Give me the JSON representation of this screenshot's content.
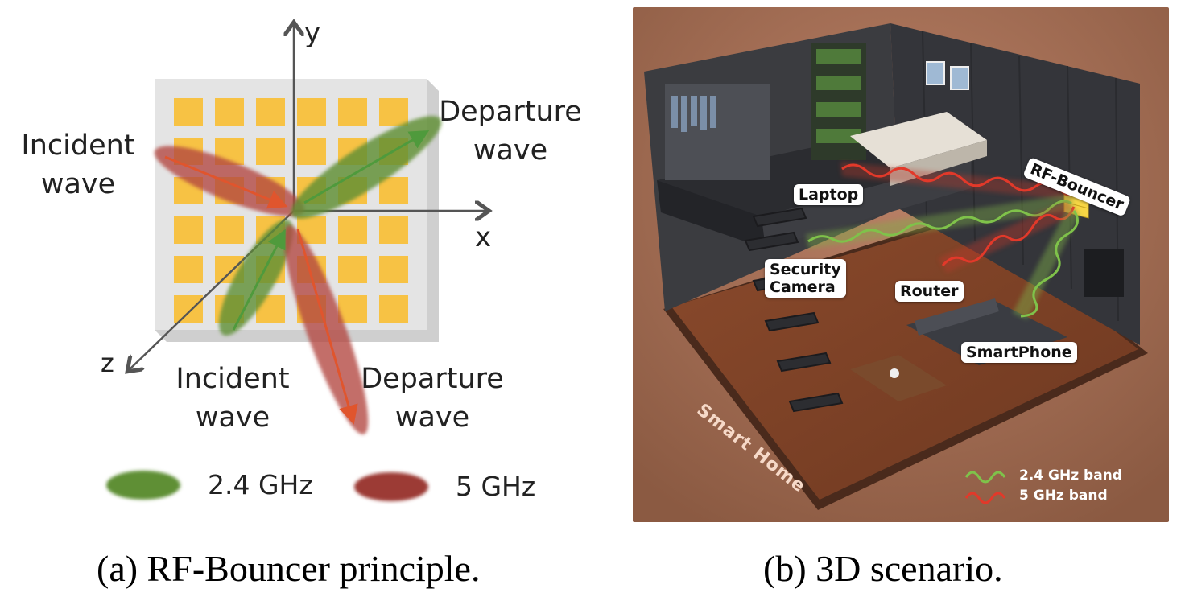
{
  "panel_a": {
    "axis_x": "x",
    "axis_y": "y",
    "axis_z": "z",
    "incident_top": [
      "Incident",
      "wave"
    ],
    "departure_top": [
      "Departure",
      "wave"
    ],
    "incident_bottom": [
      "Incident",
      "wave"
    ],
    "departure_bottom": [
      "Departure",
      "wave"
    ],
    "legend": [
      {
        "label": "2.4 GHz",
        "color": "#5f8f35"
      },
      {
        "label": "5 GHz",
        "color": "#9c3a36"
      }
    ],
    "caption": "(a)  RF-Bouncer principle."
  },
  "panel_b": {
    "labels": {
      "rf_bouncer": "RF-Bouncer",
      "laptop": "Laptop",
      "security_camera": [
        "Security",
        "Camera"
      ],
      "router": "Router",
      "smartphone": "SmartPhone",
      "smart_home": "Smart Home"
    },
    "legend": [
      {
        "label": "2.4 GHz band",
        "color": "#7fc24a"
      },
      {
        "label": "5 GHz band",
        "color": "#d8362a"
      }
    ],
    "caption": "(b)  3D scenario."
  },
  "colors": {
    "tile": "#f7c244",
    "board": "#e2e2e2",
    "green_lobe": "#5f8f35",
    "red_lobe": "#b2473f",
    "arrow_red": "#e0552d",
    "arrow_green": "#4f9a3c",
    "room_bg": "#a66e52"
  }
}
